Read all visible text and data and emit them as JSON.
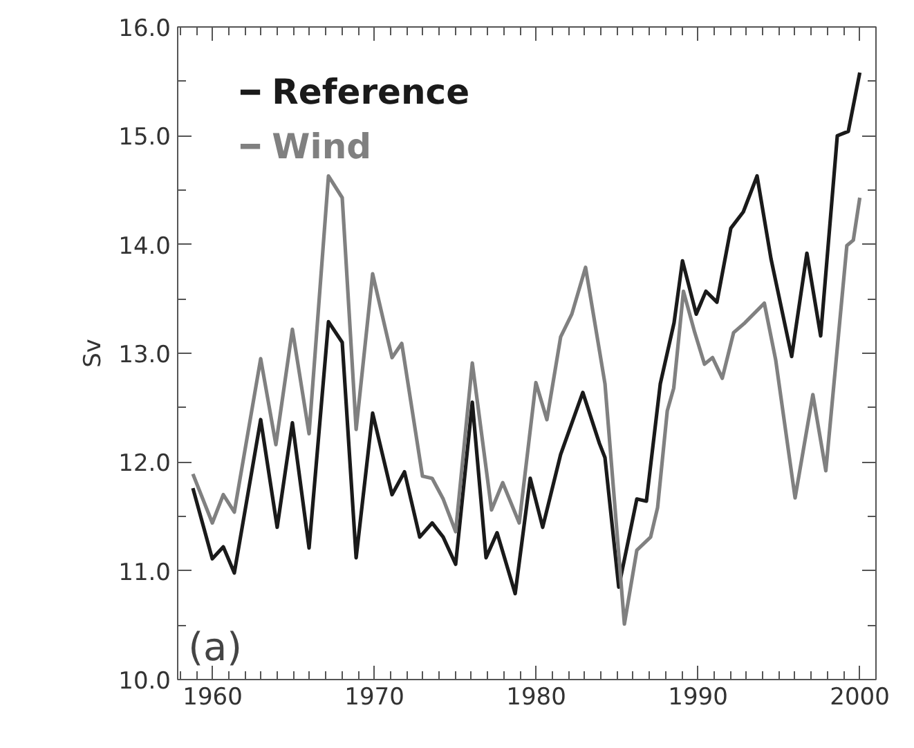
{
  "chart_data": {
    "type": "line",
    "ylabel": "Sv",
    "xlim": [
      1957.84,
      2001.0
    ],
    "ylim": [
      10.0,
      16.0
    ],
    "xticks": [
      {
        "value": 1958,
        "label": null
      },
      {
        "value": 1959,
        "label": null
      },
      1960,
      {
        "value": 1961,
        "label": null
      },
      {
        "value": 1962,
        "label": null
      },
      {
        "value": 1963,
        "label": null
      },
      {
        "value": 1964,
        "label": null
      },
      {
        "value": 1965,
        "label": null
      },
      {
        "value": 1966,
        "label": null
      },
      {
        "value": 1967,
        "label": null
      },
      {
        "value": 1968,
        "label": null
      },
      {
        "value": 1969,
        "label": null
      },
      1970,
      {
        "value": 1971,
        "label": null
      },
      {
        "value": 1972,
        "label": null
      },
      {
        "value": 1973,
        "label": null
      },
      {
        "value": 1974,
        "label": null
      },
      {
        "value": 1975,
        "label": null
      },
      {
        "value": 1976,
        "label": null
      },
      {
        "value": 1977,
        "label": null
      },
      {
        "value": 1978,
        "label": null
      },
      {
        "value": 1979,
        "label": null
      },
      1980,
      {
        "value": 1981,
        "label": null
      },
      {
        "value": 1982,
        "label": null
      },
      {
        "value": 1983,
        "label": null
      },
      {
        "value": 1984,
        "label": null
      },
      {
        "value": 1985,
        "label": null
      },
      {
        "value": 1986,
        "label": null
      },
      {
        "value": 1987,
        "label": null
      },
      {
        "value": 1988,
        "label": null
      },
      {
        "value": 1989,
        "label": null
      },
      1990,
      {
        "value": 1991,
        "label": null
      },
      {
        "value": 1992,
        "label": null
      },
      {
        "value": 1993,
        "label": null
      },
      {
        "value": 1994,
        "label": null
      },
      {
        "value": 1995,
        "label": null
      },
      {
        "value": 1996,
        "label": null
      },
      {
        "value": 1997,
        "label": null
      },
      {
        "value": 1998,
        "label": null
      },
      {
        "value": 1999,
        "label": null
      },
      2000
    ],
    "yticks": [
      {
        "value": 10.0,
        "label": "10.0"
      },
      {
        "value": 10.5,
        "label": null
      },
      {
        "value": 11.0,
        "label": "11.0"
      },
      {
        "value": 11.5,
        "label": null
      },
      {
        "value": 12.0,
        "label": "12.0"
      },
      {
        "value": 12.5,
        "label": null
      },
      {
        "value": 13.0,
        "label": "13.0"
      },
      {
        "value": 13.5,
        "label": null
      },
      {
        "value": 14.0,
        "label": "14.0"
      },
      {
        "value": 14.5,
        "label": null
      },
      {
        "value": 15.0,
        "label": "15.0"
      },
      {
        "value": 15.5,
        "label": null
      },
      {
        "value": 16.0,
        "label": "16.0"
      }
    ],
    "grid": false,
    "legend": "top left",
    "line_style": "solid",
    "annotations": [
      "(a)"
    ],
    "series": [
      {
        "name": "Reference",
        "color": "#1a1a1a",
        "x": [
          1958.78,
          1959.98,
          1960.66,
          1961.34,
          1962.97,
          1963.99,
          1964.93,
          1965.96,
          1967.16,
          1968.01,
          1968.87,
          1969.89,
          1971.09,
          1971.86,
          1972.8,
          1973.57,
          1974.25,
          1975.02,
          1976.05,
          1976.9,
          1977.58,
          1978.7,
          1979.63,
          1980.4,
          1981.51,
          1982.88,
          1983.91,
          1984.25,
          1985.1,
          1986.22,
          1986.81,
          1987.67,
          1988.52,
          1989.04,
          1989.89,
          1990.49,
          1991.17,
          1992.03,
          1992.8,
          1993.65,
          1994.51,
          1995.79,
          1996.73,
          1997.58,
          1998.61,
          1999.29,
          2000.0
        ],
        "values": [
          11.76,
          11.11,
          11.22,
          10.98,
          12.39,
          11.4,
          12.36,
          11.21,
          13.29,
          13.1,
          11.12,
          12.45,
          11.7,
          11.91,
          11.31,
          11.44,
          11.31,
          11.06,
          12.55,
          11.12,
          11.35,
          10.79,
          11.85,
          11.4,
          12.07,
          12.64,
          12.17,
          12.04,
          10.85,
          11.66,
          11.64,
          12.72,
          13.28,
          13.85,
          13.36,
          13.57,
          13.47,
          14.15,
          14.3,
          14.63,
          13.87,
          12.97,
          13.92,
          13.16,
          15.0,
          15.04,
          15.58
        ]
      },
      {
        "name": "Wind",
        "color": "#808080",
        "x": [
          1958.78,
          1959.98,
          1960.66,
          1961.34,
          1962.97,
          1963.91,
          1964.93,
          1965.96,
          1967.16,
          1968.01,
          1968.87,
          1969.89,
          1971.09,
          1971.69,
          1972.97,
          1973.57,
          1974.25,
          1975.02,
          1976.05,
          1977.24,
          1977.93,
          1978.95,
          1979.98,
          1980.66,
          1981.51,
          1982.2,
          1983.05,
          1984.25,
          1985.45,
          1986.22,
          1987.07,
          1987.5,
          1988.1,
          1988.5,
          1989.1,
          1989.8,
          1990.4,
          1990.9,
          1991.5,
          1992.2,
          1992.9,
          1994.1,
          1994.8,
          1996.0,
          1997.1,
          1997.9,
          1999.2,
          1999.6,
          2000.0
        ],
        "values": [
          11.89,
          11.44,
          11.7,
          11.54,
          12.95,
          12.16,
          13.22,
          12.26,
          14.63,
          14.43,
          12.3,
          13.73,
          12.96,
          13.09,
          11.87,
          11.85,
          11.66,
          11.36,
          12.91,
          11.56,
          11.81,
          11.44,
          12.73,
          12.39,
          13.15,
          13.36,
          13.79,
          12.72,
          10.51,
          11.19,
          11.31,
          11.58,
          12.47,
          12.68,
          13.57,
          13.19,
          12.9,
          12.96,
          12.77,
          13.19,
          13.28,
          13.46,
          12.94,
          11.67,
          12.62,
          11.92,
          13.99,
          14.04,
          14.43
        ]
      }
    ]
  }
}
